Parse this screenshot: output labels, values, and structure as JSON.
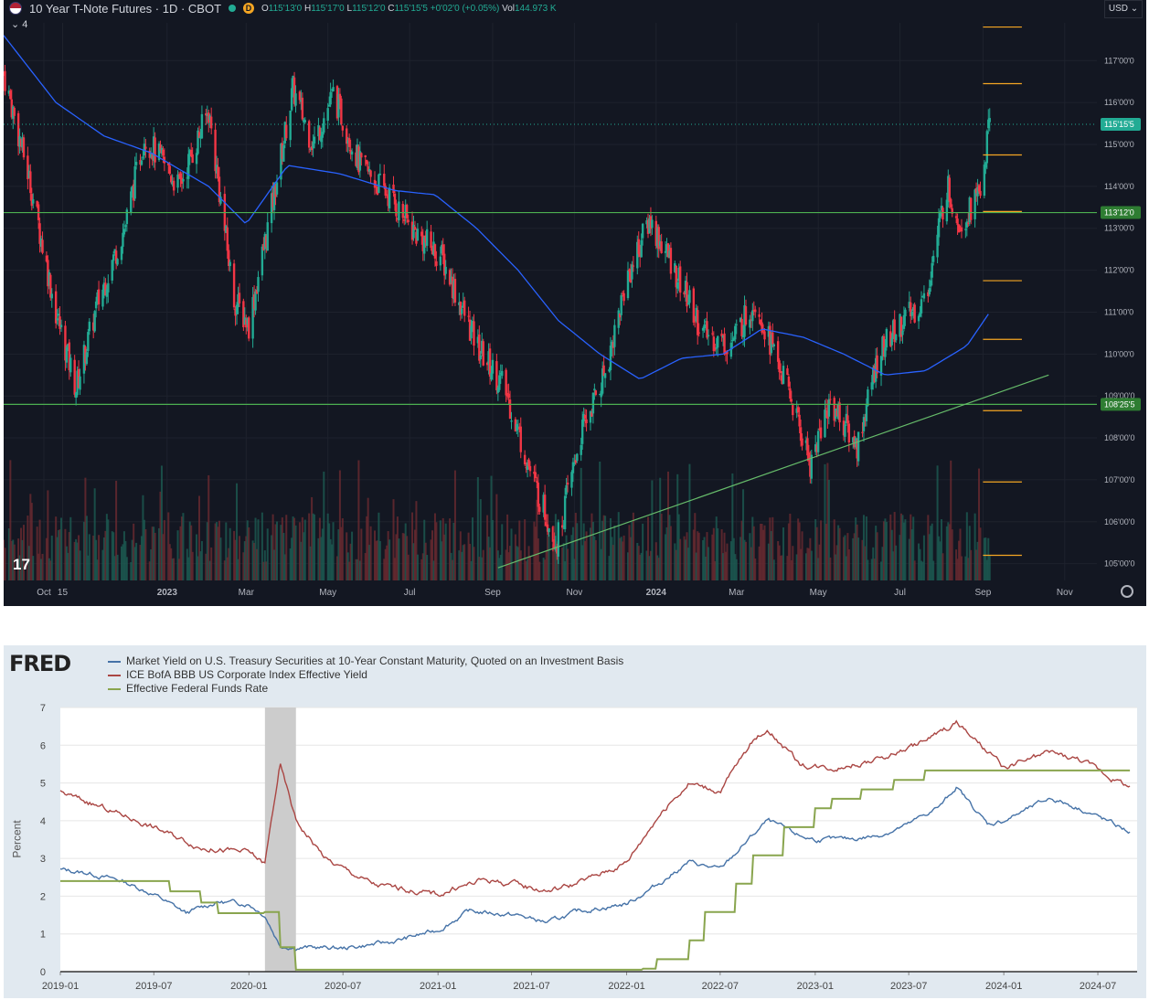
{
  "tv": {
    "title": "10 Year T-Note Futures · 1D · CBOT",
    "badge": "D",
    "ohlc": {
      "o_label": "O",
      "o": "115'13'0",
      "h_label": "H",
      "h": "115'17'0",
      "l_label": "L",
      "l": "115'12'0",
      "c_label": "C",
      "c": "115'15'5",
      "chg": "+0'02'0 (+0.05%)",
      "vol_label": "Vol",
      "vol": "144.973 K"
    },
    "currency": "USD",
    "collapse_count": "4",
    "logo": "17",
    "price_badges": [
      {
        "label": "115'15'5",
        "color": "#22ab94"
      },
      {
        "label": "113'12'0",
        "color": "#2e7d32"
      },
      {
        "label": "108'25'5",
        "color": "#2e7d32"
      }
    ],
    "colors": {
      "up": "#22ab94",
      "down": "#f23645",
      "ma": "#2962ff",
      "levels": "#4caf50",
      "targets": "#f5a623",
      "bg": "#131722"
    }
  },
  "fred": {
    "logo": "FRED",
    "legend": [
      {
        "label": "Market Yield on U.S. Treasury Securities at 10-Year Constant Maturity, Quoted on an Investment Basis",
        "color": "#4572a7"
      },
      {
        "label": "ICE BofA BBB US Corporate Index Effective Yield",
        "color": "#aa4643"
      },
      {
        "label": "Effective Federal Funds Rate",
        "color": "#89a54e"
      }
    ],
    "ylabel": "Percent",
    "recession_color": "#cccccc"
  },
  "chart_data": [
    {
      "type": "candlestick",
      "title": "10 Year T-Note Futures · 1D · CBOT",
      "x_tick_labels": [
        "Oct",
        "15",
        "2023",
        "Mar",
        "May",
        "Jul",
        "Sep",
        "Nov",
        "2024",
        "Mar",
        "May",
        "Jul",
        "Sep",
        "Nov"
      ],
      "y_tick_labels": [
        "117'00'0",
        "116'00'0",
        "115'00'0",
        "114'00'0",
        "113'00'0",
        "112'00'0",
        "111'00'0",
        "110'00'0",
        "109'00'0",
        "108'00'0",
        "107'00'0",
        "106'00'0",
        "105'00'0"
      ],
      "ylim": [
        104.6,
        117.9
      ],
      "close_path": {
        "dates": [
          "2022-09-01",
          "2022-09-20",
          "2022-10-10",
          "2022-10-25",
          "2022-11-10",
          "2022-12-01",
          "2022-12-15",
          "2023-01-10",
          "2023-02-01",
          "2023-02-20",
          "2023-03-03",
          "2023-03-20",
          "2023-04-05",
          "2023-04-20",
          "2023-05-05",
          "2023-05-25",
          "2023-06-15",
          "2023-07-05",
          "2023-07-25",
          "2023-08-20",
          "2023-09-10",
          "2023-10-01",
          "2023-10-19",
          "2023-11-05",
          "2023-11-25",
          "2023-12-10",
          "2023-12-27",
          "2024-01-15",
          "2024-02-05",
          "2024-02-25",
          "2024-03-15",
          "2024-04-10",
          "2024-04-25",
          "2024-05-10",
          "2024-05-30",
          "2024-06-15",
          "2024-07-01",
          "2024-07-20",
          "2024-08-05",
          "2024-08-15",
          "2024-08-30",
          "2024-09-06"
        ],
        "values": [
          116.7,
          114.2,
          111.0,
          109.2,
          111.2,
          113.1,
          115.2,
          114.0,
          115.8,
          111.3,
          110.7,
          113.5,
          116.3,
          115.0,
          116.2,
          114.5,
          113.8,
          112.9,
          112.3,
          110.2,
          109.2,
          107.0,
          105.5,
          108.0,
          109.7,
          111.8,
          113.2,
          112.0,
          110.5,
          110.2,
          111.3,
          109.0,
          107.4,
          108.9,
          107.8,
          110.0,
          110.7,
          111.3,
          114.0,
          113.1,
          113.9,
          115.48
        ]
      },
      "moving_average": {
        "dates": [
          "2022-09-01",
          "2022-10-10",
          "2022-11-15",
          "2022-12-20",
          "2023-02-01",
          "2023-03-01",
          "2023-04-01",
          "2023-05-10",
          "2023-06-20",
          "2023-07-20",
          "2023-08-20",
          "2023-09-20",
          "2023-10-20",
          "2023-11-20",
          "2023-12-20",
          "2024-01-20",
          "2024-02-20",
          "2024-03-20",
          "2024-04-20",
          "2024-05-20",
          "2024-06-20",
          "2024-07-20",
          "2024-08-20",
          "2024-09-06"
        ],
        "values": [
          117.6,
          116.0,
          115.2,
          114.8,
          114.0,
          113.1,
          114.5,
          114.3,
          113.9,
          113.8,
          113.0,
          112.0,
          110.8,
          110.0,
          109.4,
          109.9,
          110.0,
          110.6,
          110.4,
          110.0,
          109.5,
          109.6,
          110.2,
          111.0
        ]
      },
      "horizontal_levels": [
        113.375,
        108.8
      ],
      "trendline": {
        "from": [
          "2023-09-05",
          104.9
        ],
        "to": [
          "2024-10-20",
          109.5
        ]
      },
      "target_levels": [
        117.8,
        116.45,
        114.75,
        113.4,
        111.75,
        110.35,
        108.65,
        106.95,
        105.2
      ],
      "current_price": "115'15'5"
    },
    {
      "type": "line",
      "source": "FRED",
      "x_tick_labels": [
        "2019-01",
        "2019-07",
        "2020-01",
        "2020-07",
        "2021-01",
        "2021-07",
        "2022-01",
        "2022-07",
        "2023-01",
        "2023-07",
        "2024-01",
        "2024-07"
      ],
      "ylim": [
        0,
        7
      ],
      "y_ticks": [
        0,
        1,
        2,
        3,
        4,
        5,
        6,
        7
      ],
      "ylabel": "Percent",
      "recession_shading": [
        "2020-02",
        "2020-04"
      ],
      "series": [
        {
          "name": "Market Yield on U.S. Treasury Securities at 10-Year Constant Maturity, Quoted on an Investment Basis",
          "dates": [
            "2019-01",
            "2019-03",
            "2019-05",
            "2019-07",
            "2019-09",
            "2019-11",
            "2020-01",
            "2020-02",
            "2020-03",
            "2020-04",
            "2020-07",
            "2020-10",
            "2021-01",
            "2021-03",
            "2021-06",
            "2021-08",
            "2021-10",
            "2022-01",
            "2022-03",
            "2022-05",
            "2022-07",
            "2022-09",
            "2022-10",
            "2022-12",
            "2023-01",
            "2023-03",
            "2023-05",
            "2023-07",
            "2023-09",
            "2023-10",
            "2023-12",
            "2024-01",
            "2024-02",
            "2024-04",
            "2024-06",
            "2024-08",
            "2024-09"
          ],
          "values": [
            2.7,
            2.6,
            2.4,
            2.05,
            1.55,
            1.85,
            1.8,
            1.5,
            0.7,
            0.65,
            0.62,
            0.78,
            1.1,
            1.6,
            1.5,
            1.3,
            1.6,
            1.8,
            2.3,
            2.9,
            2.7,
            3.6,
            4.0,
            3.6,
            3.5,
            3.5,
            3.6,
            3.9,
            4.4,
            4.9,
            3.9,
            4.0,
            4.2,
            4.6,
            4.3,
            3.9,
            3.7
          ]
        },
        {
          "name": "ICE BofA BBB US Corporate Index Effective Yield",
          "dates": [
            "2019-01",
            "2019-06",
            "2019-10",
            "2020-01",
            "2020-02",
            "2020-03",
            "2020-04",
            "2020-06",
            "2020-09",
            "2021-01",
            "2021-04",
            "2021-08",
            "2021-10",
            "2022-01",
            "2022-03",
            "2022-05",
            "2022-07",
            "2022-09",
            "2022-10",
            "2022-12",
            "2023-02",
            "2023-05",
            "2023-08",
            "2023-10",
            "2024-01",
            "2024-04",
            "2024-06",
            "2024-08",
            "2024-09"
          ],
          "values": [
            4.75,
            4.0,
            3.3,
            3.15,
            2.85,
            5.5,
            4.0,
            2.95,
            2.3,
            2.05,
            2.45,
            2.15,
            2.35,
            2.9,
            4.1,
            5.0,
            4.8,
            6.1,
            6.45,
            5.5,
            5.4,
            5.6,
            6.1,
            6.6,
            5.4,
            5.8,
            5.6,
            5.1,
            4.9
          ]
        },
        {
          "name": "Effective Federal Funds Rate",
          "dates": [
            "2019-01",
            "2019-07",
            "2019-08",
            "2019-10",
            "2019-11",
            "2020-02",
            "2020-03",
            "2020-04",
            "2022-02",
            "2022-03",
            "2022-05",
            "2022-06",
            "2022-08",
            "2022-09",
            "2022-11",
            "2023-01",
            "2023-02",
            "2023-04",
            "2023-06",
            "2023-08",
            "2024-08",
            "2024-09"
          ],
          "values": [
            2.4,
            2.4,
            2.13,
            1.83,
            1.55,
            1.58,
            0.65,
            0.05,
            0.08,
            0.33,
            0.83,
            1.58,
            2.33,
            3.08,
            3.83,
            4.33,
            4.58,
            4.83,
            5.08,
            5.33,
            5.33,
            5.33
          ]
        }
      ]
    }
  ]
}
